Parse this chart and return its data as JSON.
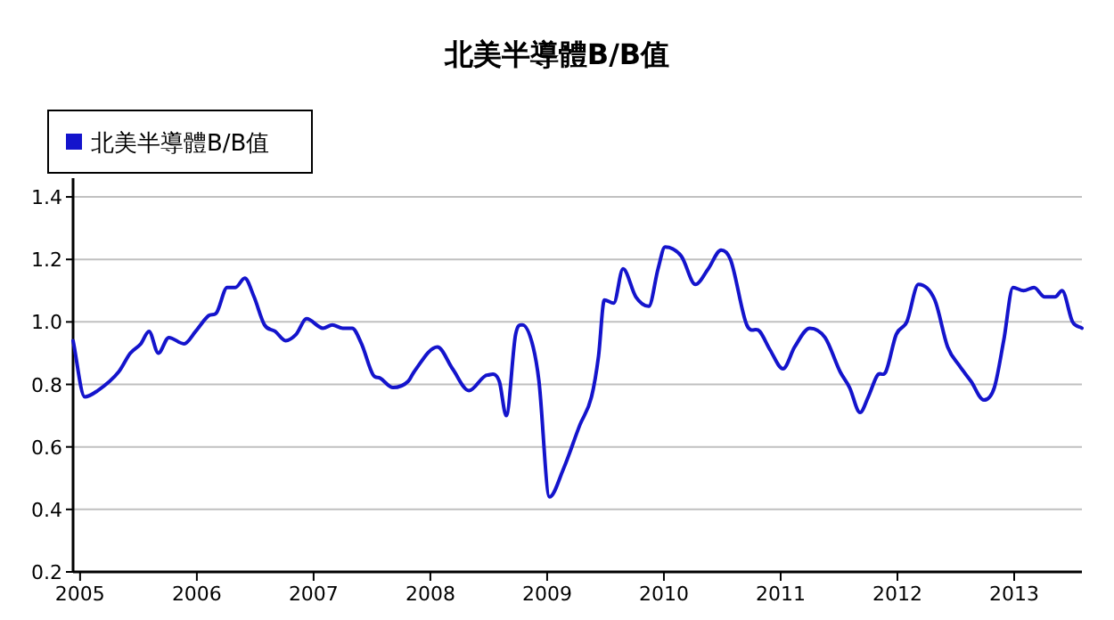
{
  "chart_data": {
    "type": "line",
    "title": "北美半導體B/B值",
    "series": [
      {
        "name": "北美半導體B/B值",
        "color": "#1414cc",
        "x": [
          2004.94,
          2005.04,
          2005.15,
          2005.33,
          2005.43,
          2005.52,
          2005.59,
          2005.67,
          2005.76,
          2005.89,
          2005.99,
          2006.1,
          2006.17,
          2006.26,
          2006.33,
          2006.41,
          2006.49,
          2006.58,
          2006.67,
          2006.76,
          2006.85,
          2006.94,
          2007.08,
          2007.16,
          2007.25,
          2007.33,
          2007.41,
          2007.51,
          2007.57,
          2007.68,
          2007.81,
          2007.86,
          2008.06,
          2008.19,
          2008.33,
          2008.49,
          2008.59,
          2008.65,
          2008.73,
          2008.79,
          2008.88,
          2008.93,
          2009.02,
          2009.14,
          2009.28,
          2009.38,
          2009.44,
          2009.49,
          2009.57,
          2009.65,
          2009.76,
          2009.87,
          2009.95,
          2010.01,
          2010.15,
          2010.27,
          2010.38,
          2010.49,
          2010.57,
          2010.71,
          2010.82,
          2010.91,
          2011.02,
          2011.12,
          2011.25,
          2011.38,
          2011.51,
          2011.59,
          2011.68,
          2011.75,
          2011.83,
          2011.9,
          2011.99,
          2012.08,
          2012.18,
          2012.32,
          2012.43,
          2012.53,
          2012.63,
          2012.74,
          2012.83,
          2012.91,
          2012.99,
          2013.08,
          2013.17,
          2013.26,
          2013.35,
          2013.41,
          2013.5,
          2013.58
        ],
        "values": [
          0.94,
          0.76,
          0.78,
          0.84,
          0.9,
          0.93,
          0.97,
          0.9,
          0.95,
          0.93,
          0.97,
          1.02,
          1.03,
          1.11,
          1.11,
          1.14,
          1.08,
          0.99,
          0.97,
          0.94,
          0.96,
          1.01,
          0.98,
          0.99,
          0.98,
          0.98,
          0.93,
          0.83,
          0.82,
          0.79,
          0.81,
          0.84,
          0.92,
          0.85,
          0.78,
          0.83,
          0.81,
          0.7,
          0.96,
          0.99,
          0.92,
          0.81,
          0.44,
          0.53,
          0.67,
          0.76,
          0.89,
          1.07,
          1.06,
          1.17,
          1.08,
          1.05,
          1.17,
          1.24,
          1.21,
          1.12,
          1.17,
          1.23,
          1.2,
          0.99,
          0.97,
          0.91,
          0.85,
          0.92,
          0.98,
          0.95,
          0.84,
          0.79,
          0.71,
          0.76,
          0.83,
          0.84,
          0.96,
          1.0,
          1.12,
          1.07,
          0.92,
          0.86,
          0.81,
          0.75,
          0.79,
          0.94,
          1.11,
          1.1,
          1.11,
          1.08,
          1.08,
          1.1,
          1.0,
          0.98
        ]
      }
    ],
    "xlim": [
      2004.94,
      2013.58
    ],
    "xticks": [
      2005,
      2006,
      2007,
      2008,
      2009,
      2010,
      2011,
      2012,
      2013
    ],
    "ylim": [
      0.2,
      1.46
    ],
    "yticks": [
      0.2,
      0.4,
      0.6,
      0.8,
      {
        "value": 1,
        "label": "1.0"
      },
      1.2,
      1.4
    ],
    "grid": "y",
    "legend": "top left"
  }
}
